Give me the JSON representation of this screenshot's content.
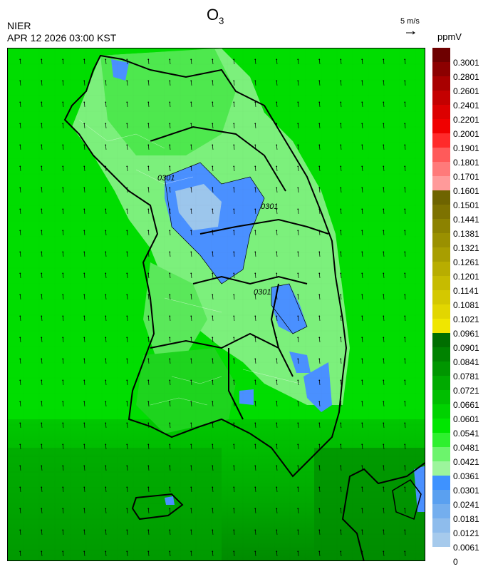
{
  "header": {
    "title_main": "O",
    "title_sub": "3",
    "agency": "NIER",
    "datetime": "APR 12 2026 03:00 KST",
    "wind_reference": "5 m/s",
    "unit": "ppmV"
  },
  "map": {
    "contour_label": "0301",
    "contour_label_2": "0301",
    "contour_label_3": "0301"
  },
  "colorbar": {
    "labels": [
      "0.3001",
      "0.2801",
      "0.2601",
      "0.2401",
      "0.2201",
      "0.2001",
      "0.1901",
      "0.1801",
      "0.1701",
      "0.1601",
      "0.1501",
      "0.1441",
      "0.1381",
      "0.1321",
      "0.1261",
      "0.1201",
      "0.1141",
      "0.1081",
      "0.1021",
      "0.0961",
      "0.0901",
      "0.0841",
      "0.0781",
      "0.0721",
      "0.0661",
      "0.0601",
      "0.0541",
      "0.0481",
      "0.0421",
      "0.0361",
      "0.0301",
      "0.0241",
      "0.0181",
      "0.0121",
      "0.0061",
      "0"
    ],
    "colors": [
      "#6e0000",
      "#8c0000",
      "#a80000",
      "#c40000",
      "#dc0000",
      "#f00000",
      "#ff2a2a",
      "#ff5a5a",
      "#ff7a7a",
      "#ff9a9a",
      "#6e6400",
      "#7d7200",
      "#8c8200",
      "#9a9000",
      "#a89e00",
      "#b8ad00",
      "#c6bb00",
      "#d4c800",
      "#e2d600",
      "#f0e600",
      "#006e00",
      "#008200",
      "#009600",
      "#00aa00",
      "#00be00",
      "#00d200",
      "#00e600",
      "#2ef02e",
      "#6cf46c",
      "#9cf59c",
      "#3e92ff",
      "#5aa0f0",
      "#74aeee",
      "#8ebcec",
      "#a6caec"
    ],
    "colors_scale": "ozone ppmV"
  }
}
